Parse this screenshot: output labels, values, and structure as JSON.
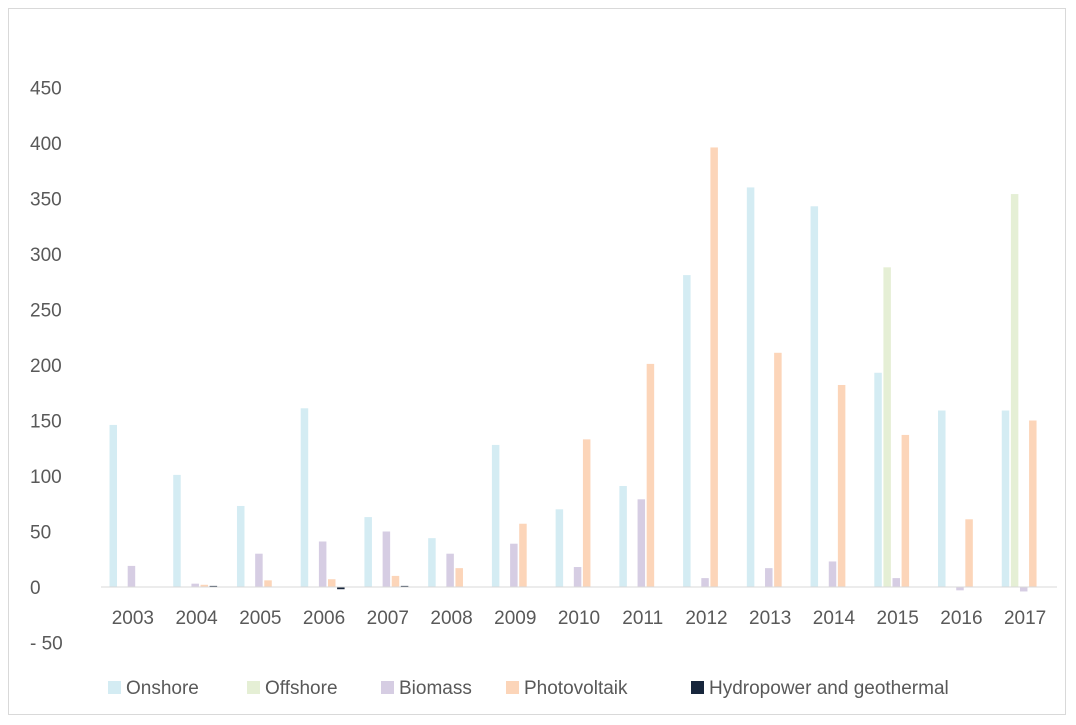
{
  "chart_data": {
    "type": "bar",
    "title": "",
    "xlabel": "",
    "ylabel": "",
    "ylim": [
      -50,
      450
    ],
    "yticks": [
      -50,
      0,
      50,
      100,
      150,
      200,
      250,
      300,
      350,
      400,
      450
    ],
    "ytick_labels": [
      "- 50",
      "0",
      "50",
      "100",
      "150",
      "200",
      "250",
      "300",
      "350",
      "400",
      "450"
    ],
    "grid": false,
    "legend_position": "bottom",
    "categories": [
      "2003",
      "2004",
      "2005",
      "2006",
      "2007",
      "2008",
      "2009",
      "2010",
      "2011",
      "2012",
      "2013",
      "2014",
      "2015",
      "2016",
      "2017"
    ],
    "series": [
      {
        "name": "Onshore",
        "color": "#d4ecf3",
        "values": [
          146,
          101,
          73,
          161,
          63,
          44,
          128,
          70,
          91,
          281,
          360,
          343,
          193,
          159,
          159
        ]
      },
      {
        "name": "Offshore",
        "color": "#e5efd5",
        "values": [
          0,
          0,
          0,
          0,
          0,
          0,
          0,
          0,
          0,
          0,
          0,
          0,
          288,
          0,
          354
        ]
      },
      {
        "name": "Biomass",
        "color": "#d6cde3",
        "values": [
          19,
          3,
          30,
          41,
          50,
          30,
          39,
          18,
          79,
          8,
          17,
          23,
          8,
          -3,
          -4
        ]
      },
      {
        "name": "Photovoltaik",
        "color": "#fcd5b9",
        "values": [
          0,
          2,
          6,
          7,
          10,
          17,
          57,
          133,
          201,
          396,
          211,
          182,
          137,
          61,
          150
        ]
      },
      {
        "name": "Hydropower and geothermal",
        "color": "#17263c",
        "values": [
          0,
          1,
          0,
          -2,
          1,
          0,
          0,
          0,
          0,
          0,
          0,
          0,
          0,
          0,
          0
        ]
      }
    ]
  }
}
